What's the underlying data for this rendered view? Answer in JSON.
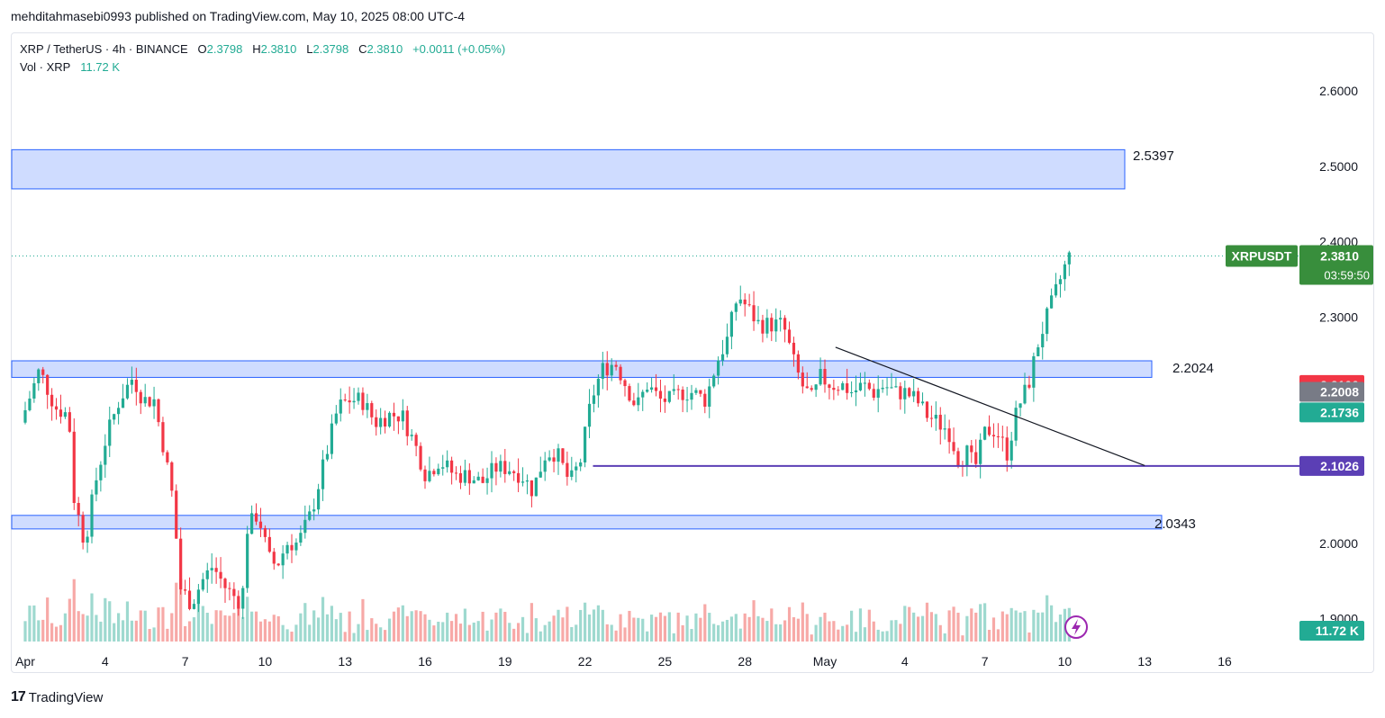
{
  "publisher": "mehditahmasebi0993 published on TradingView.com, May 10, 2025 08:00 UTC-4",
  "legend": {
    "symbol": "XRP / TetherUS · 4h · BINANCE",
    "o_label": "O",
    "o_value": "2.3798",
    "h_label": "H",
    "h_value": "2.3810",
    "l_label": "L",
    "l_value": "2.3798",
    "c_label": "C",
    "c_value": "2.3810",
    "change": "+0.0011 (+0.05%)",
    "vol_label": "Vol · XRP",
    "vol_value": "11.72 K"
  },
  "colors": {
    "up": "#22ab94",
    "down": "#f23645",
    "zone_fill": "#cfdcff",
    "zone_stroke": "#2962ff",
    "support": "#5b3fb5",
    "price_tag": "#388e3c"
  },
  "chart_data": {
    "type": "candlestick",
    "timeframe": "4h",
    "y_axis": {
      "ticks": [
        2.6,
        2.5,
        2.4,
        2.3,
        2.0,
        1.9
      ],
      "tick_labels": [
        "2.6000",
        "2.5000",
        "2.4000",
        "2.3000",
        "2.0000",
        "1.9000"
      ],
      "range": [
        1.88,
        2.66
      ]
    },
    "x_axis": {
      "ticks": [
        {
          "day": 1,
          "label": "Apr"
        },
        {
          "day": 4,
          "label": "4"
        },
        {
          "day": 7,
          "label": "7"
        },
        {
          "day": 10,
          "label": "10"
        },
        {
          "day": 13,
          "label": "13"
        },
        {
          "day": 16,
          "label": "16"
        },
        {
          "day": 19,
          "label": "19"
        },
        {
          "day": 22,
          "label": "22"
        },
        {
          "day": 25,
          "label": "25"
        },
        {
          "day": 28,
          "label": "28"
        },
        {
          "day": 31,
          "label": "May"
        },
        {
          "day": 34,
          "label": "4"
        },
        {
          "day": 37,
          "label": "7"
        },
        {
          "day": 40,
          "label": "10"
        },
        {
          "day": 43,
          "label": "13"
        },
        {
          "day": 46,
          "label": "16"
        }
      ]
    },
    "price_path": [
      [
        1.0,
        2.16
      ],
      [
        1.7,
        2.23
      ],
      [
        2.3,
        2.18
      ],
      [
        2.8,
        2.17
      ],
      [
        3.0,
        2.06
      ],
      [
        3.4,
        2.0
      ],
      [
        3.8,
        2.08
      ],
      [
        4.2,
        2.14
      ],
      [
        4.7,
        2.19
      ],
      [
        5.2,
        2.22
      ],
      [
        5.6,
        2.19
      ],
      [
        6.0,
        2.19
      ],
      [
        6.4,
        2.12
      ],
      [
        6.7,
        2.06
      ],
      [
        7.0,
        1.94
      ],
      [
        7.4,
        1.92
      ],
      [
        7.8,
        1.95
      ],
      [
        8.2,
        1.97
      ],
      [
        8.7,
        1.94
      ],
      [
        9.3,
        1.92
      ],
      [
        9.5,
        2.02
      ],
      [
        9.9,
        2.04
      ],
      [
        10.3,
        1.98
      ],
      [
        10.6,
        1.97
      ],
      [
        11.0,
        2.0
      ],
      [
        11.4,
        2.0
      ],
      [
        11.9,
        2.04
      ],
      [
        12.4,
        2.11
      ],
      [
        12.9,
        2.18
      ],
      [
        13.3,
        2.19
      ],
      [
        13.8,
        2.19
      ],
      [
        14.3,
        2.16
      ],
      [
        14.8,
        2.17
      ],
      [
        15.3,
        2.17
      ],
      [
        15.8,
        2.13
      ],
      [
        16.2,
        2.09
      ],
      [
        16.7,
        2.11
      ],
      [
        17.3,
        2.09
      ],
      [
        17.8,
        2.09
      ],
      [
        18.3,
        2.08
      ],
      [
        18.8,
        2.1
      ],
      [
        19.3,
        2.1
      ],
      [
        19.8,
        2.09
      ],
      [
        20.2,
        2.07
      ],
      [
        20.7,
        2.12
      ],
      [
        21.1,
        2.12
      ],
      [
        21.6,
        2.08
      ],
      [
        22.0,
        2.11
      ],
      [
        22.4,
        2.19
      ],
      [
        22.8,
        2.23
      ],
      [
        23.3,
        2.24
      ],
      [
        23.7,
        2.21
      ],
      [
        24.1,
        2.18
      ],
      [
        24.5,
        2.21
      ],
      [
        25.0,
        2.19
      ],
      [
        25.4,
        2.19
      ],
      [
        25.8,
        2.2
      ],
      [
        26.2,
        2.2
      ],
      [
        26.7,
        2.19
      ],
      [
        27.1,
        2.24
      ],
      [
        27.5,
        2.27
      ],
      [
        27.9,
        2.33
      ],
      [
        28.3,
        2.31
      ],
      [
        28.7,
        2.29
      ],
      [
        29.2,
        2.29
      ],
      [
        29.6,
        2.29
      ],
      [
        30.0,
        2.24
      ],
      [
        30.3,
        2.21
      ],
      [
        30.7,
        2.19
      ],
      [
        31.0,
        2.22
      ],
      [
        31.4,
        2.21
      ],
      [
        31.8,
        2.21
      ],
      [
        32.2,
        2.2
      ],
      [
        32.6,
        2.21
      ],
      [
        33.0,
        2.2
      ],
      [
        33.4,
        2.21
      ],
      [
        33.8,
        2.2
      ],
      [
        34.2,
        2.2
      ],
      [
        34.6,
        2.19
      ],
      [
        35.0,
        2.17
      ],
      [
        35.4,
        2.16
      ],
      [
        35.8,
        2.15
      ],
      [
        36.2,
        2.11
      ],
      [
        36.5,
        2.12
      ],
      [
        36.8,
        2.1
      ],
      [
        37.2,
        2.15
      ],
      [
        37.6,
        2.15
      ],
      [
        38.0,
        2.12
      ],
      [
        38.4,
        2.18
      ],
      [
        38.8,
        2.21
      ],
      [
        39.2,
        2.27
      ],
      [
        39.6,
        2.31
      ],
      [
        39.9,
        2.34
      ],
      [
        40.3,
        2.38
      ]
    ],
    "horizontal_zones": [
      {
        "from": 2.47,
        "to": 2.522,
        "label": "2.5397"
      },
      {
        "from": 2.22,
        "to": 2.242,
        "label": "2.2024"
      },
      {
        "from": 2.019,
        "to": 2.037,
        "label": "2.0343"
      }
    ],
    "support_line": {
      "value": 2.1026,
      "from_day": 22.3,
      "label": "2.1026"
    },
    "trend_line": {
      "from": [
        31.4,
        2.26
      ],
      "to": [
        43.0,
        2.103
      ]
    },
    "current_price": {
      "value": 2.381,
      "symbol": "XRPUSDT",
      "label": "2.3810",
      "countdown": "03:59:50"
    },
    "price_tags": [
      {
        "value": 2.21,
        "label": "2.2100",
        "color": "#f23645"
      },
      {
        "value": 2.2008,
        "label": "2.2008",
        "color": "#787b86"
      },
      {
        "value": 2.1736,
        "label": "2.1736",
        "color": "#22ab94"
      }
    ],
    "volume": {
      "last_label": "11.72 K"
    },
    "grid": false
  },
  "footer": {
    "logo_mark": "17",
    "brand": "TradingView"
  }
}
